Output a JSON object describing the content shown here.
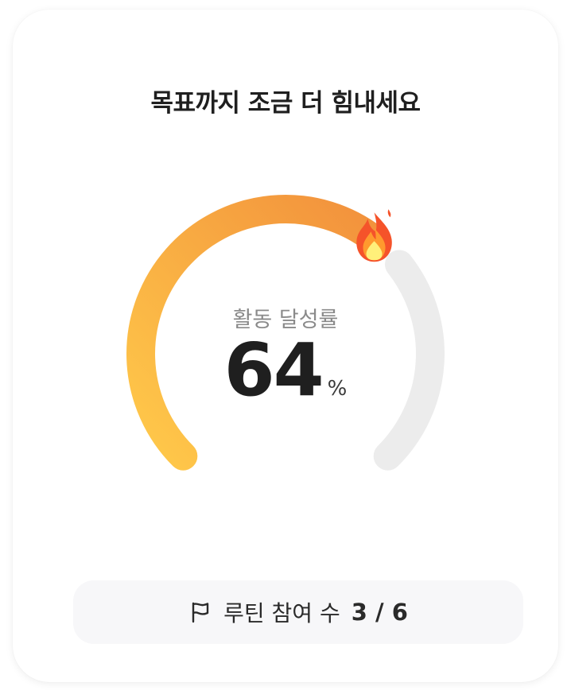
{
  "title": "목표까지 조금 더 힘내세요",
  "gauge": {
    "label": "활동 달성률",
    "value": 64,
    "unit": "%",
    "progress_percent": 64,
    "colors": {
      "track": "#ececec",
      "gradient_start": "#ffc94a",
      "gradient_end": "#f2913c"
    },
    "marker_icon": "fire-icon"
  },
  "routine": {
    "icon": "flag-icon",
    "label": "루틴 참여 수",
    "count": "3 / 6"
  }
}
